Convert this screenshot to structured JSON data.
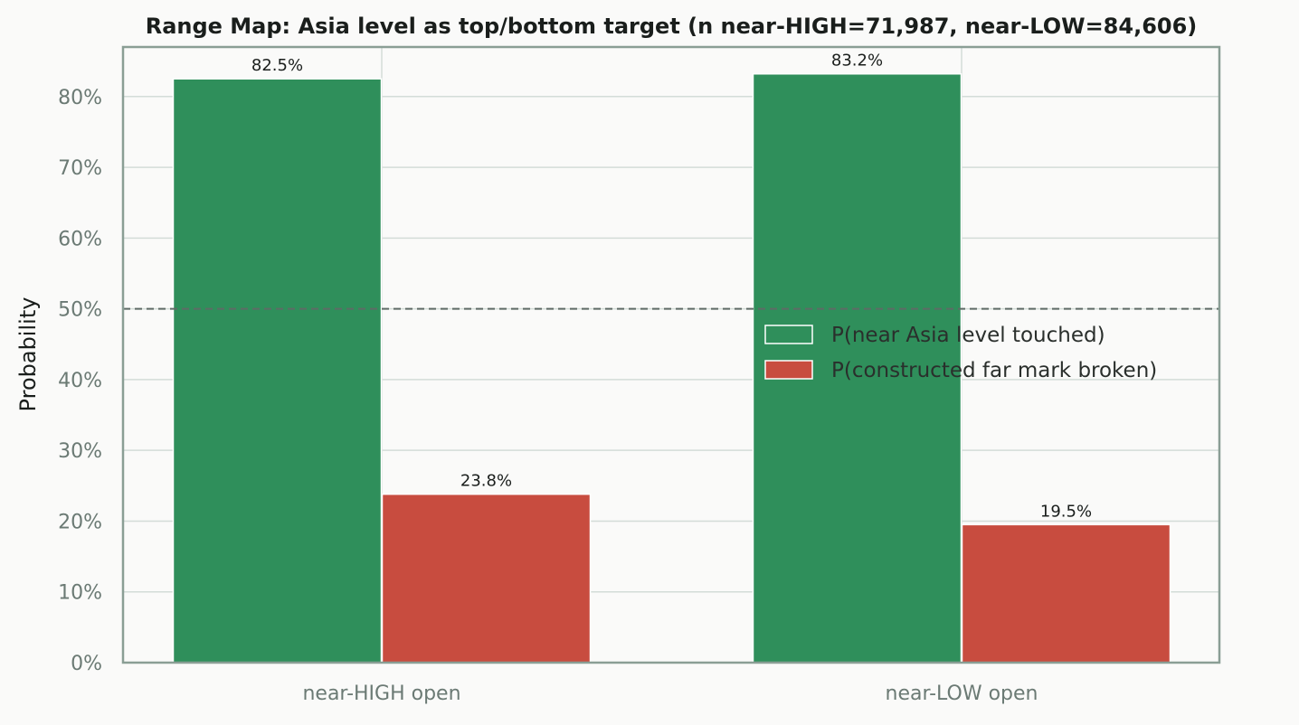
{
  "chart_data": {
    "type": "bar",
    "title": "Range Map: Asia level as top/bottom target (n near-HIGH=71,987, near-LOW=84,606)",
    "xlabel": "",
    "ylabel": "Probability",
    "categories": [
      "near-HIGH open",
      "near-LOW open"
    ],
    "series": [
      {
        "name": "P(near Asia level touched)",
        "color": "#2f8f5b",
        "values": [
          0.825,
          0.832
        ],
        "labels": [
          "82.5%",
          "83.2%"
        ]
      },
      {
        "name": "P(constructed far mark broken)",
        "color": "#c84c3f",
        "values": [
          0.238,
          0.195
        ],
        "labels": [
          "23.8%",
          "19.5%"
        ]
      }
    ],
    "ylim": [
      0,
      0.87
    ],
    "yticks": [
      0,
      0.1,
      0.2,
      0.3,
      0.4,
      0.5,
      0.6,
      0.7,
      0.8
    ],
    "ytick_labels": [
      "0%",
      "10%",
      "20%",
      "30%",
      "40%",
      "50%",
      "60%",
      "70%",
      "80%"
    ],
    "reference_line": {
      "value": 0.5,
      "style": "dashed",
      "color": "#5e6b66"
    },
    "grid": true,
    "legend_position": "center-right",
    "colors": {
      "background": "#fafaf9",
      "grid": "#d3dcd8",
      "frame": "#8a9e95",
      "tick_text": "#6b7a74",
      "title_text": "#1a1e1c"
    }
  }
}
